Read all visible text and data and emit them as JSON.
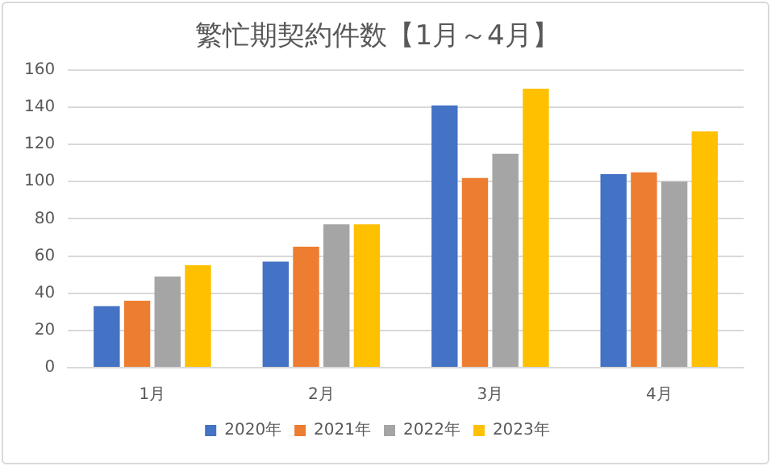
{
  "chart_data": {
    "type": "bar",
    "title": "繁忙期契約件数【1月～4月】",
    "categories": [
      "1月",
      "2月",
      "3月",
      "4月"
    ],
    "series": [
      {
        "name": "2020年",
        "color": "#4472c4",
        "values": [
          33,
          57,
          141,
          104
        ]
      },
      {
        "name": "2021年",
        "color": "#ed7d31",
        "values": [
          36,
          65,
          102,
          105
        ]
      },
      {
        "name": "2022年",
        "color": "#a5a5a5",
        "values": [
          49,
          77,
          115,
          100
        ]
      },
      {
        "name": "2023年",
        "color": "#ffc000",
        "values": [
          55,
          77,
          150,
          127
        ]
      }
    ],
    "ylim": [
      0,
      160
    ],
    "yticks": [
      0,
      20,
      40,
      60,
      80,
      100,
      120,
      140,
      160
    ],
    "grid": "y",
    "legend": "bottom"
  }
}
